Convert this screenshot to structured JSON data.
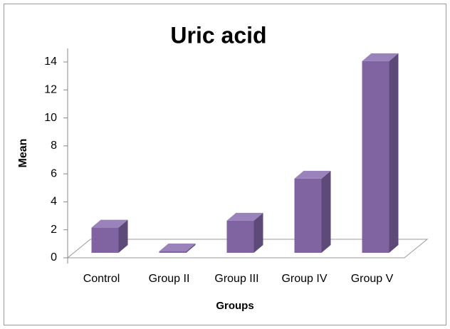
{
  "chart_data": {
    "type": "bar3d",
    "title": "Uric acid",
    "x_label": "Groups",
    "y_label": "Mean",
    "categories": [
      "Control",
      "Group II",
      "Group III",
      "Group IV",
      "Group V"
    ],
    "values": [
      1.8,
      0.1,
      2.3,
      5.3,
      13.7
    ],
    "color": "#8064a2",
    "ylim": [
      0,
      14
    ],
    "yticks": [
      0,
      2,
      4,
      6,
      8,
      10,
      12,
      14
    ],
    "grid": false
  }
}
